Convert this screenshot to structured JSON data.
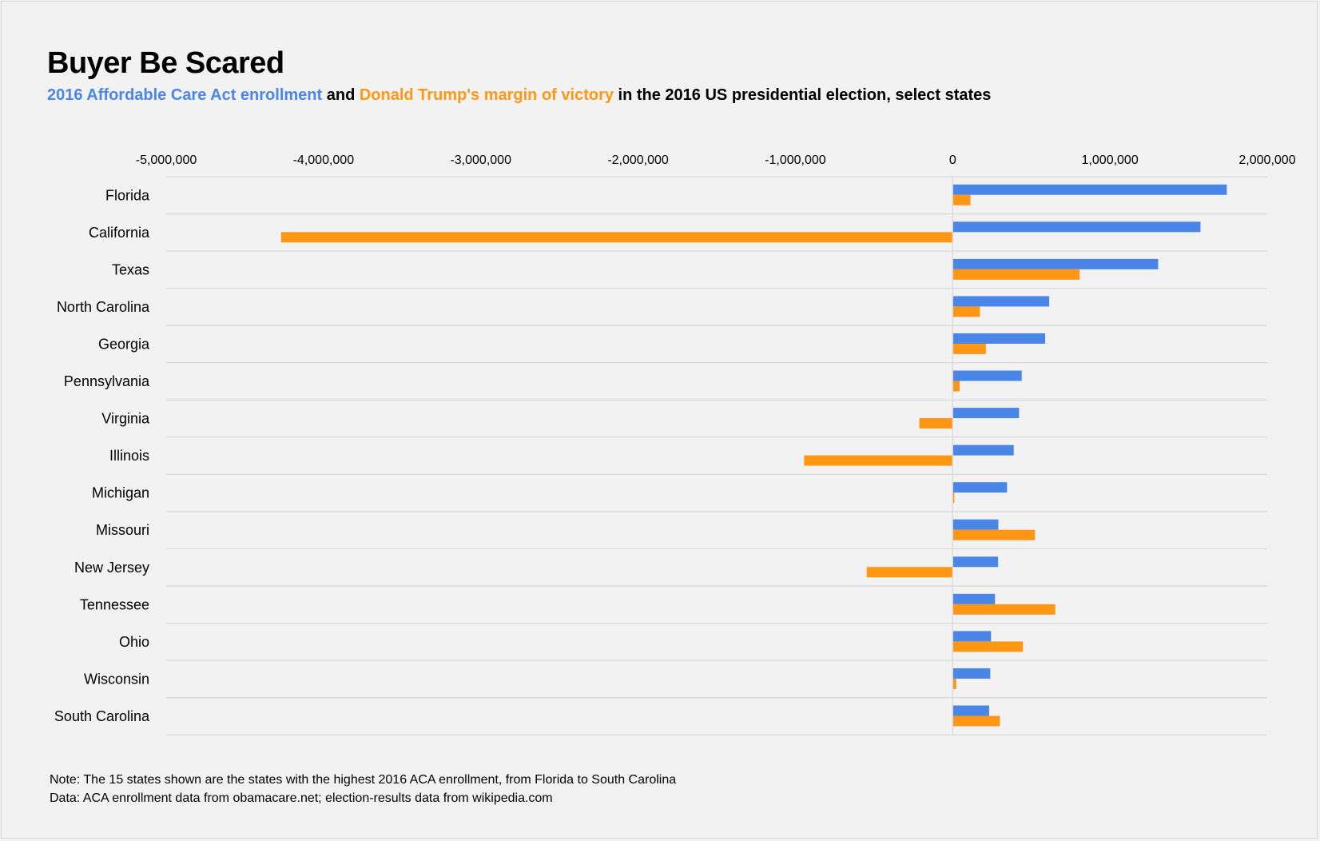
{
  "title": "Buyer Be Scared",
  "subtitle": {
    "part1": "2016 Affordable Care Act enrollment",
    "part2": " and ",
    "part3": "Donald Trump's margin of victory",
    "part4": " in the 2016 US presidential election, select states"
  },
  "notes": {
    "note": "Note: The 15 states shown are the states with the highest 2016 ACA enrollment, from Florida to South Carolina",
    "data": "Data: ACA enrollment data from obamacare.net; election-results  data from wikipedia.com"
  },
  "colors": {
    "enrollment": "#4a86e8",
    "margin": "#ff9614",
    "gridline": "#d9d9d9",
    "background": "#f2f2f2"
  },
  "chart_data": {
    "type": "bar",
    "orientation": "horizontal",
    "categories": [
      "Florida",
      "California",
      "Texas",
      "North Carolina",
      "Georgia",
      "Pennsylvania",
      "Virginia",
      "Illinois",
      "Michigan",
      "Missouri",
      "New Jersey",
      "Tennessee",
      "Ohio",
      "Wisconsin",
      "South Carolina"
    ],
    "series": [
      {
        "name": "2016 Affordable Care Act enrollment",
        "values": [
          1742819,
          1575340,
          1306208,
          613487,
          587845,
          439238,
          421897,
          388179,
          345813,
          290201,
          288573,
          268867,
          243715,
          239034,
          231849
        ]
      },
      {
        "name": "Donald Trump's margin of victory",
        "values": [
          112911,
          -4269978,
          807179,
          173315,
          211141,
          44292,
          -212030,
          -944714,
          10704,
          523443,
          -546345,
          652230,
          446841,
          22748,
          300016
        ]
      }
    ],
    "xlim": [
      -5000000,
      2000000
    ],
    "x_ticks": [
      -5000000,
      -4000000,
      -3000000,
      -2000000,
      -1000000,
      0,
      1000000,
      2000000
    ],
    "x_tick_labels": [
      "-5,000,000",
      "-4,000,000",
      "-3,000,000",
      "-2,000,000",
      "-1,000,000",
      "0",
      "1,000,000",
      "2,000,000"
    ],
    "grid": true,
    "axis_position": "top",
    "legend": "none"
  }
}
